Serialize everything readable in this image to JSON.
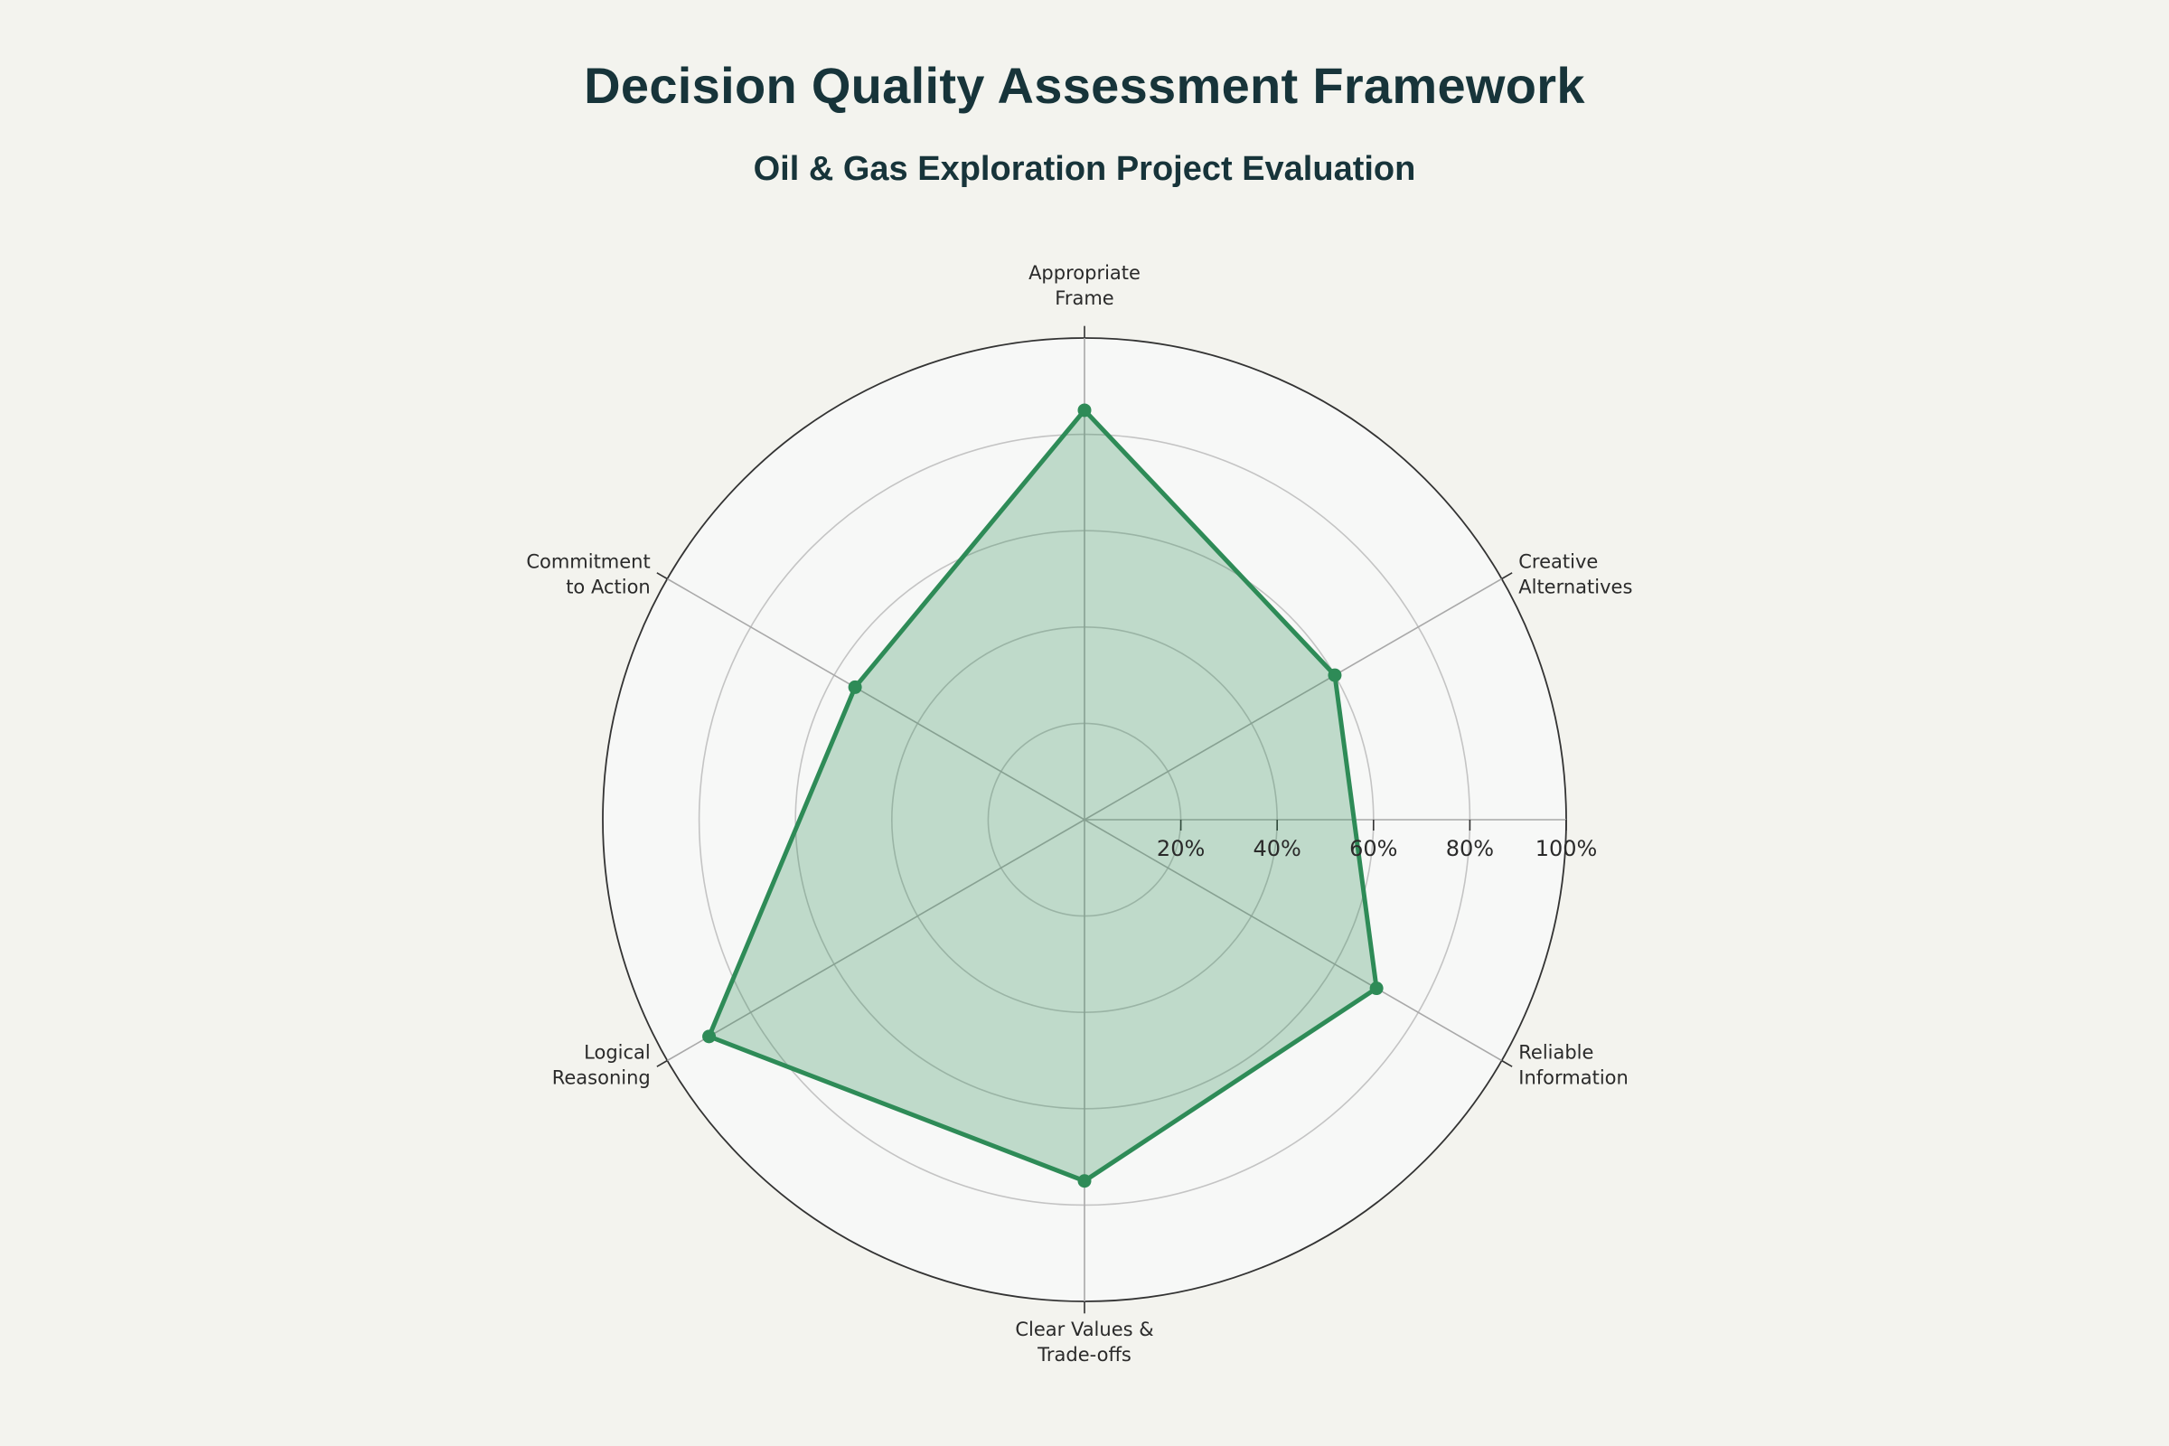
{
  "chart_data": {
    "type": "radar",
    "title": "Decision Quality Assessment Framework",
    "subtitle": "Oil & Gas Exploration Project Evaluation",
    "categories": [
      "Appropriate Frame",
      "Creative Alternatives",
      "Reliable Information",
      "Clear Values & Trade-offs",
      "Logical Reasoning",
      "Commitment to Action"
    ],
    "category_lines": [
      [
        "Appropriate",
        "Frame"
      ],
      [
        "Creative",
        "Alternatives"
      ],
      [
        "Reliable",
        "Information"
      ],
      [
        "Clear Values &",
        "Trade-offs"
      ],
      [
        "Logical",
        "Reasoning"
      ],
      [
        "Commitment",
        "to Action"
      ]
    ],
    "values": [
      85,
      60,
      70,
      75,
      90,
      55
    ],
    "radial_range": [
      0,
      100
    ],
    "radial_ticks": [
      20,
      40,
      60,
      80,
      100
    ],
    "radial_tick_labels": [
      "20%",
      "40%",
      "60%",
      "80%",
      "100%"
    ],
    "grid": true,
    "legend": false,
    "colors": {
      "line": "#2e8b57",
      "fill": "#2e8b57",
      "plot_background": "#f7f8f7",
      "grid": "#c4c4c4",
      "outer_ring": "#333333"
    }
  }
}
